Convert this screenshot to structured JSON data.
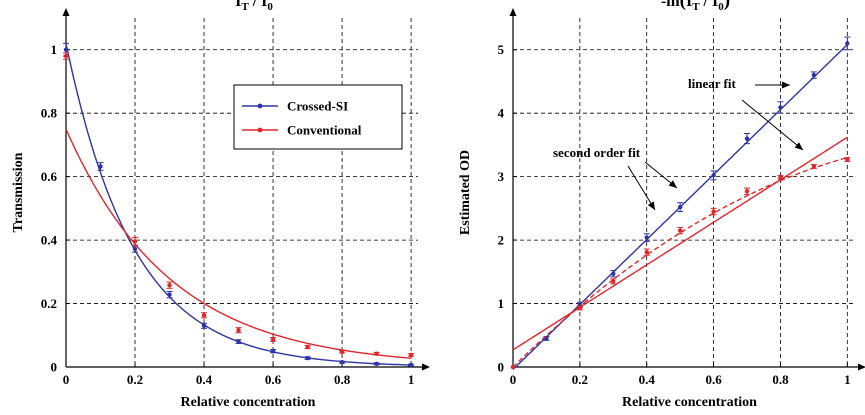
{
  "colors": {
    "crossed": "#2b35a6",
    "conventional": "#e0262a",
    "grid": "#000000"
  },
  "chart_data": [
    {
      "type": "line",
      "title": {
        "main": "I",
        "sub1": "T",
        "sep": " / I",
        "sub2": "0"
      },
      "xlabel": "Relative concentration",
      "ylabel": "Transmission",
      "xlim": [
        0,
        1.02
      ],
      "ylim": [
        0,
        1.1
      ],
      "x_ticks": [
        0,
        0.2,
        0.4,
        0.6,
        0.8,
        1
      ],
      "x_tick_labels": [
        "0",
        "0.2",
        "0.4",
        "0.6",
        "0.8",
        "1"
      ],
      "y_ticks": [
        0,
        0.2,
        0.4,
        0.6,
        0.8,
        1
      ],
      "y_tick_labels": [
        "0",
        "0.2",
        "0.4",
        "0.6",
        "0.8",
        "1"
      ],
      "grid": true,
      "legend": {
        "position": "upper-right",
        "entries": [
          "Crossed-SI",
          "Conventional"
        ]
      },
      "series": [
        {
          "name": "Crossed-SI",
          "color": "#2b35a6",
          "x": [
            0,
            0.1,
            0.2,
            0.3,
            0.4,
            0.5,
            0.6,
            0.7,
            0.8,
            0.9,
            1.0
          ],
          "y": [
            1.0,
            0.632,
            0.372,
            0.228,
            0.13,
            0.08,
            0.05,
            0.028,
            0.015,
            0.01,
            0.006
          ],
          "err": [
            0.02,
            0.012,
            0.01,
            0.01,
            0.008,
            0.006,
            0.005,
            0.004,
            0.003,
            0.003,
            0.003
          ],
          "fit": {
            "kind": "exponential",
            "a": 1.02,
            "k": 5.1
          }
        },
        {
          "name": "Conventional",
          "color": "#e0262a",
          "x": [
            0,
            0.2,
            0.3,
            0.4,
            0.5,
            0.6,
            0.7,
            0.8,
            0.9,
            1.0
          ],
          "y": [
            0.98,
            0.396,
            0.258,
            0.163,
            0.116,
            0.087,
            0.063,
            0.048,
            0.042,
            0.038
          ],
          "err": [
            0.01,
            0.012,
            0.01,
            0.008,
            0.008,
            0.006,
            0.005,
            0.004,
            0.004,
            0.004
          ],
          "fit": {
            "kind": "exponential",
            "a": 0.75,
            "k": 3.3
          }
        }
      ]
    },
    {
      "type": "line",
      "title": {
        "prefix": "-ln",
        "main": "I",
        "sub1": "T",
        "sep": " / I",
        "sub2": "0"
      },
      "xlabel": "Relative concentration",
      "ylabel": "Estimated OD",
      "xlim": [
        0,
        1.02
      ],
      "ylim": [
        0,
        5.5
      ],
      "x_ticks": [
        0,
        0.2,
        0.4,
        0.6,
        0.8,
        1
      ],
      "x_tick_labels": [
        "0",
        "0.2",
        "0.4",
        "0.6",
        "0.8",
        "1"
      ],
      "y_ticks": [
        0,
        1,
        2,
        3,
        4,
        5
      ],
      "y_tick_labels": [
        "0",
        "1",
        "2",
        "3",
        "4",
        "5"
      ],
      "grid": true,
      "annotations": [
        "linear fit",
        "second order fit"
      ],
      "series": [
        {
          "name": "Crossed-SI",
          "color": "#2b35a6",
          "x": [
            0,
            0.1,
            0.2,
            0.3,
            0.4,
            0.5,
            0.6,
            0.7,
            0.8,
            0.9,
            1.0
          ],
          "y": [
            0,
            0.45,
            0.98,
            1.47,
            2.04,
            2.52,
            3.02,
            3.6,
            4.09,
            4.6,
            5.1
          ],
          "err": [
            0,
            0.03,
            0.04,
            0.05,
            0.06,
            0.07,
            0.07,
            0.08,
            0.09,
            0.05,
            0.1
          ],
          "fit": {
            "kind": "linear",
            "m": 5.12,
            "b": -0.04
          }
        },
        {
          "name": "Conventional",
          "color": "#e0262a",
          "x": [
            0,
            0.2,
            0.3,
            0.4,
            0.5,
            0.6,
            0.7,
            0.8,
            0.9,
            1.0
          ],
          "y": [
            0,
            0.93,
            1.35,
            1.81,
            2.15,
            2.45,
            2.77,
            2.99,
            3.16,
            3.27
          ],
          "err": [
            0,
            0.03,
            0.04,
            0.05,
            0.05,
            0.05,
            0.05,
            0.03,
            0.03,
            0.03
          ],
          "fit_linear": {
            "kind": "linear",
            "m": 3.35,
            "b": 0.27
          },
          "fit_quadratic": {
            "kind": "quadratic",
            "c0": 0,
            "c1": 5.15,
            "c2": -1.85
          }
        }
      ]
    }
  ]
}
